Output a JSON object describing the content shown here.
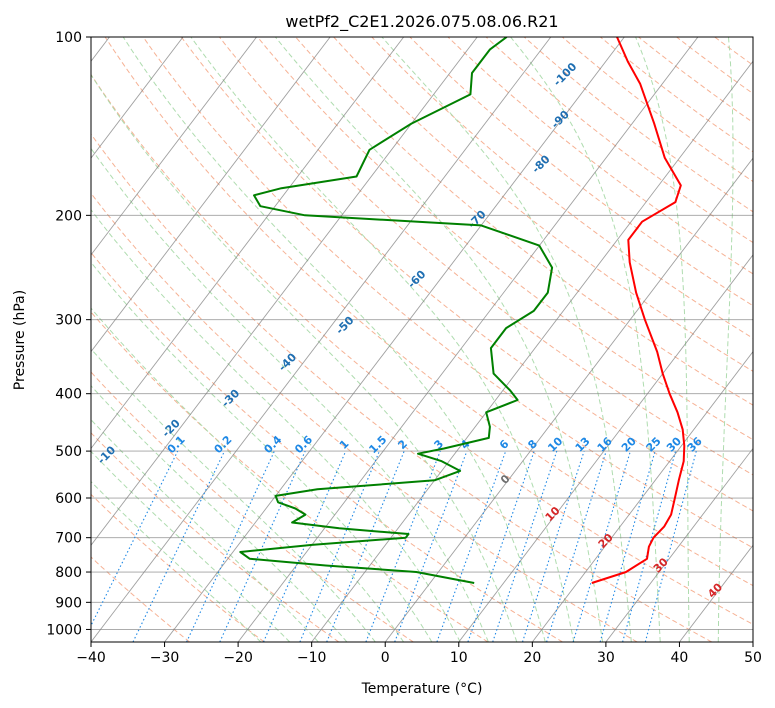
{
  "chart_data": {
    "type": "line",
    "title": "wetPf2_C2E1.2026.075.08.06.R21",
    "xlabel": "Temperature (°C)",
    "ylabel": "Pressure (hPa)",
    "xlim": [
      -40,
      50
    ],
    "ylim": [
      1050,
      100
    ],
    "y_scale": "log",
    "x_ticks": [
      -40,
      -30,
      -20,
      -10,
      0,
      10,
      20,
      30,
      40,
      50
    ],
    "y_ticks": [
      100,
      200,
      300,
      400,
      500,
      600,
      700,
      800,
      900,
      1000
    ],
    "grid": true,
    "skew": true,
    "colors": {
      "temperature": "#ff0000",
      "dewpoint": "#008000",
      "isotherm": "#808080",
      "dry_adiabat": "#f4a582",
      "moist_adiabat": "#a6d8a6",
      "mixing_ratio": "#1e88e5",
      "ann_blue": "#1f6fb2",
      "ann_red": "#d62728",
      "ann_gray": "#6e6e6e"
    },
    "series": [
      {
        "key": "temperature",
        "color": "#ff0000",
        "points": [
          [
            835,
            22
          ],
          [
            800,
            25.5
          ],
          [
            760,
            27
          ],
          [
            725,
            26
          ],
          [
            700,
            25.7
          ],
          [
            670,
            26
          ],
          [
            640,
            25.7
          ],
          [
            600,
            24.5
          ],
          [
            560,
            23.2
          ],
          [
            520,
            21.9
          ],
          [
            490,
            20.4
          ],
          [
            460,
            18.5
          ],
          [
            430,
            16
          ],
          [
            400,
            13
          ],
          [
            370,
            10
          ],
          [
            340,
            7
          ],
          [
            300,
            2
          ],
          [
            270,
            -2
          ],
          [
            240,
            -6
          ],
          [
            220,
            -8.5
          ],
          [
            205,
            -8.5
          ],
          [
            190,
            -6
          ],
          [
            178,
            -7
          ],
          [
            160,
            -12
          ],
          [
            140,
            -17
          ],
          [
            120,
            -23
          ],
          [
            110,
            -27
          ],
          [
            100,
            -31
          ]
        ]
      },
      {
        "key": "dewpoint",
        "color": "#008000",
        "points": [
          [
            835,
            6
          ],
          [
            800,
            -3
          ],
          [
            780,
            -16
          ],
          [
            760,
            -27
          ],
          [
            740,
            -29
          ],
          [
            720,
            -20
          ],
          [
            700,
            -8
          ],
          [
            690,
            -8
          ],
          [
            675,
            -18
          ],
          [
            660,
            -25
          ],
          [
            640,
            -24
          ],
          [
            625,
            -26
          ],
          [
            610,
            -29
          ],
          [
            595,
            -30
          ],
          [
            580,
            -25
          ],
          [
            560,
            -10
          ],
          [
            540,
            -7.5
          ],
          [
            520,
            -11
          ],
          [
            505,
            -15
          ],
          [
            495,
            -12
          ],
          [
            475,
            -7
          ],
          [
            455,
            -8
          ],
          [
            430,
            -10
          ],
          [
            410,
            -7
          ],
          [
            395,
            -9
          ],
          [
            370,
            -13
          ],
          [
            335,
            -16
          ],
          [
            310,
            -16
          ],
          [
            290,
            -14
          ],
          [
            270,
            -14
          ],
          [
            245,
            -16
          ],
          [
            225,
            -20
          ],
          [
            208,
            -30
          ],
          [
            200,
            -55
          ],
          [
            193,
            -62
          ],
          [
            185,
            -64
          ],
          [
            180,
            -61
          ],
          [
            172,
            -52
          ],
          [
            155,
            -53
          ],
          [
            140,
            -50
          ],
          [
            125,
            -45
          ],
          [
            115,
            -47
          ],
          [
            105,
            -47
          ],
          [
            100,
            -46
          ]
        ]
      }
    ],
    "mixing_ratio_labels": [
      "0.1",
      "0.2",
      "0.4",
      "0.6",
      "1",
      "1.5",
      "2",
      "3",
      "4",
      "6",
      "8",
      "10",
      "13",
      "16",
      "20",
      "25",
      "30",
      "36"
    ],
    "mixing_ratio_values": [
      0.1,
      0.2,
      0.4,
      0.6,
      1,
      1.5,
      2,
      3,
      4,
      6,
      8,
      10,
      13,
      16,
      20,
      25,
      30,
      36
    ],
    "dry_adiabat_labels": [
      "-100",
      "-90",
      "-80",
      "-70",
      "-60",
      "-50",
      "-40",
      "-30",
      "-20",
      "-10"
    ],
    "dry_adiabat_values": [
      -100,
      -90,
      -80,
      -70,
      -60,
      -50,
      -40,
      -30,
      -20,
      -10
    ],
    "isotherm_labels": [
      "0",
      "10",
      "20",
      "30",
      "40"
    ],
    "isotherm_values": [
      0,
      10,
      20,
      30,
      40
    ]
  }
}
